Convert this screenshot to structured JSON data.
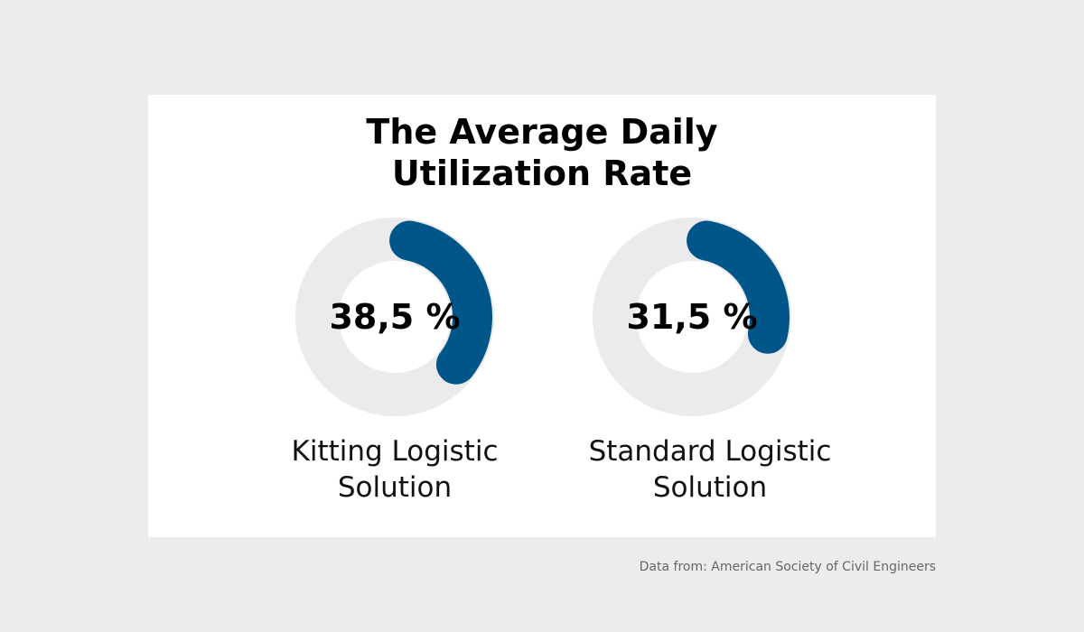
{
  "chart_data": {
    "type": "pie",
    "subtype": "donut",
    "title": "The Average Daily Utilization Rate",
    "series": [
      {
        "name": "Kitting Logistic Solution",
        "value": 38.5,
        "label": "38,5 %"
      },
      {
        "name": "Standard Logistic Solution",
        "value": 31.5,
        "label": "31,5 %"
      }
    ],
    "unit": "%",
    "max": 100,
    "colors": {
      "fill": "#005589",
      "track": "#ebebed"
    }
  },
  "title_lines": [
    "The Average Daily",
    "Utilization Rate"
  ],
  "labels": [
    [
      "Kitting Logistic",
      "Solution"
    ],
    [
      "Standard Logistic",
      "Solution"
    ]
  ],
  "source": "Data from: American Society of Civil Engineers"
}
